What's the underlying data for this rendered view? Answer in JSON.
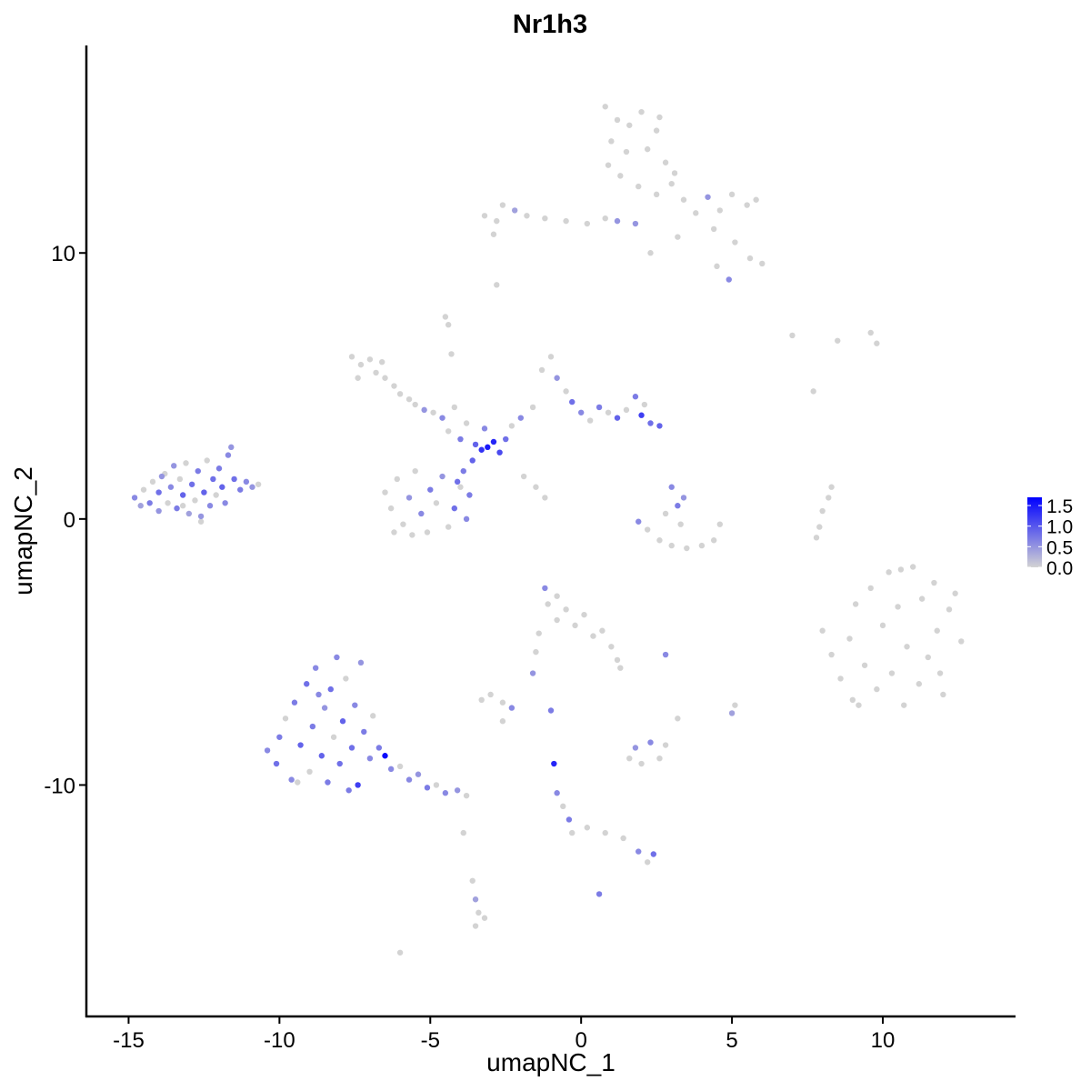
{
  "chart_data": {
    "type": "scatter",
    "title": "Nr1h3",
    "xlabel": "umapNC_1",
    "ylabel": "umapNC_2",
    "xlim": [
      -16.4,
      14.4
    ],
    "ylim": [
      -18.7,
      17.8
    ],
    "x_ticks": [
      -15,
      -10,
      -5,
      0,
      5,
      10
    ],
    "x_tick_labels": [
      "-15",
      "-10",
      "-5",
      "0",
      "5",
      "10"
    ],
    "y_ticks": [
      -10,
      0,
      10
    ],
    "y_tick_labels": [
      "-10",
      "0",
      "10"
    ],
    "grid": false,
    "legend": {
      "position": "right",
      "range": [
        0,
        1.7
      ],
      "ticks": [
        0,
        0.5,
        1.0,
        1.5
      ],
      "tick_labels": [
        "0.0",
        "0.5",
        "1.0",
        "1.5"
      ],
      "color_low": "#d3d3d3",
      "color_high": "#0000ff"
    },
    "points": [
      [
        -14.8,
        0.8,
        0.6
      ],
      [
        -14.6,
        0.5,
        0.4
      ],
      [
        -14.5,
        1.1,
        0
      ],
      [
        -14.3,
        0.6,
        0.7
      ],
      [
        -14.2,
        1.4,
        0
      ],
      [
        -14.0,
        0.3,
        0.5
      ],
      [
        -14.0,
        1.0,
        0.8
      ],
      [
        -13.8,
        1.7,
        0
      ],
      [
        -13.7,
        0.6,
        0
      ],
      [
        -13.6,
        1.2,
        0.6
      ],
      [
        -13.5,
        2.0,
        0.5
      ],
      [
        -13.4,
        0.4,
        0.7
      ],
      [
        -13.3,
        1.5,
        0
      ],
      [
        -13.2,
        0.9,
        0.9
      ],
      [
        -13.1,
        2.1,
        0
      ],
      [
        -13.0,
        0.2,
        0.4
      ],
      [
        -12.9,
        1.3,
        0.8
      ],
      [
        -12.8,
        0.7,
        0
      ],
      [
        -12.7,
        1.8,
        0.7
      ],
      [
        -12.6,
        0.1,
        0.5
      ],
      [
        -12.5,
        1.0,
        0.9
      ],
      [
        -12.4,
        2.2,
        0
      ],
      [
        -12.3,
        0.5,
        0.6
      ],
      [
        -12.2,
        1.5,
        0.8
      ],
      [
        -12.1,
        0.9,
        0
      ],
      [
        -12.0,
        1.9,
        0.7
      ],
      [
        -11.9,
        1.2,
        0.9
      ],
      [
        -11.8,
        0.6,
        0.6
      ],
      [
        -11.7,
        2.4,
        0.6
      ],
      [
        -11.6,
        2.7,
        0.5
      ],
      [
        -11.5,
        1.5,
        0.8
      ],
      [
        -11.3,
        1.1,
        0.7
      ],
      [
        -11.1,
        1.4,
        0.6
      ],
      [
        -10.9,
        1.2,
        0.5
      ],
      [
        -10.7,
        1.3,
        0
      ],
      [
        -12.6,
        -0.1,
        0
      ],
      [
        -13.9,
        1.6,
        0.5
      ],
      [
        -13.2,
        0.5,
        0
      ],
      [
        -7.6,
        6.1,
        0
      ],
      [
        -7.3,
        5.8,
        0
      ],
      [
        -7.0,
        6.0,
        0
      ],
      [
        -6.8,
        5.5,
        0
      ],
      [
        -6.5,
        5.3,
        0
      ],
      [
        -6.2,
        5.0,
        0
      ],
      [
        -6.0,
        4.7,
        0
      ],
      [
        -5.7,
        4.5,
        0
      ],
      [
        -7.4,
        5.3,
        0
      ],
      [
        -6.6,
        5.9,
        0
      ],
      [
        -5.5,
        4.3,
        0
      ],
      [
        -5.2,
        4.1,
        0.5
      ],
      [
        -4.9,
        4.0,
        0
      ],
      [
        -4.6,
        3.8,
        0.6
      ],
      [
        -4.4,
        3.3,
        0
      ],
      [
        -4.2,
        4.2,
        0
      ],
      [
        -4.0,
        3.0,
        0.7
      ],
      [
        -3.8,
        3.6,
        0
      ],
      [
        -3.5,
        2.8,
        0.9
      ],
      [
        -3.3,
        2.6,
        1.3
      ],
      [
        -3.1,
        2.7,
        1.5
      ],
      [
        -2.9,
        2.9,
        1.4
      ],
      [
        -2.7,
        2.5,
        1.1
      ],
      [
        -2.5,
        3.0,
        0.8
      ],
      [
        -3.6,
        2.2,
        0.9
      ],
      [
        -3.9,
        1.8,
        0.7
      ],
      [
        -4.1,
        1.4,
        0.8
      ],
      [
        -3.2,
        3.4,
        0.6
      ],
      [
        -2.3,
        3.5,
        0
      ],
      [
        -2.0,
        3.8,
        0.6
      ],
      [
        -1.6,
        4.2,
        0
      ],
      [
        -1.3,
        5.6,
        0
      ],
      [
        -1.0,
        6.1,
        0
      ],
      [
        -0.8,
        5.3,
        0.5
      ],
      [
        -0.5,
        4.8,
        0
      ],
      [
        -0.3,
        4.4,
        0.8
      ],
      [
        0.0,
        4.0,
        0.6
      ],
      [
        0.3,
        3.7,
        0
      ],
      [
        0.6,
        4.2,
        0.7
      ],
      [
        0.9,
        4.0,
        0
      ],
      [
        1.2,
        3.8,
        0.9
      ],
      [
        1.5,
        4.1,
        0
      ],
      [
        1.8,
        4.6,
        0.7
      ],
      [
        2.1,
        4.3,
        0
      ],
      [
        2.3,
        3.6,
        0.8
      ],
      [
        2.6,
        3.5,
        0.9
      ],
      [
        2.0,
        3.9,
        1.2
      ],
      [
        -1.9,
        1.6,
        0
      ],
      [
        -1.5,
        1.2,
        0
      ],
      [
        -1.2,
        0.8,
        0
      ],
      [
        -4.5,
        7.6,
        0
      ],
      [
        -4.4,
        7.3,
        0
      ],
      [
        -4.3,
        6.2,
        0
      ],
      [
        -6.5,
        1.0,
        0
      ],
      [
        -6.3,
        0.4,
        0
      ],
      [
        -6.1,
        1.5,
        0
      ],
      [
        -5.9,
        -0.2,
        0
      ],
      [
        -5.7,
        0.8,
        0.5
      ],
      [
        -5.5,
        1.8,
        0
      ],
      [
        -5.3,
        0.2,
        0.6
      ],
      [
        -5.1,
        -0.5,
        0
      ],
      [
        -5.0,
        1.1,
        0.7
      ],
      [
        -4.8,
        0.6,
        0
      ],
      [
        -4.6,
        1.6,
        0.5
      ],
      [
        -4.4,
        -0.3,
        0
      ],
      [
        -4.2,
        0.4,
        0.8
      ],
      [
        -4.0,
        1.2,
        0
      ],
      [
        -3.8,
        0.0,
        0.6
      ],
      [
        -3.7,
        0.9,
        0.7
      ],
      [
        -6.2,
        -0.5,
        0
      ],
      [
        -5.6,
        -0.6,
        0
      ],
      [
        -2.6,
        11.8,
        0
      ],
      [
        -2.8,
        11.2,
        0
      ],
      [
        -3.2,
        11.4,
        0
      ],
      [
        -2.2,
        11.6,
        0.4
      ],
      [
        -1.8,
        11.4,
        0
      ],
      [
        -1.2,
        11.3,
        0
      ],
      [
        -0.5,
        11.2,
        0
      ],
      [
        0.2,
        11.1,
        0
      ],
      [
        0.8,
        11.3,
        0
      ],
      [
        1.2,
        11.2,
        0.5
      ],
      [
        1.8,
        11.1,
        0.5
      ],
      [
        -2.9,
        10.7,
        0
      ],
      [
        -2.8,
        8.8,
        0
      ],
      [
        0.8,
        15.5,
        0
      ],
      [
        1.2,
        15.0,
        0
      ],
      [
        1.6,
        14.8,
        0
      ],
      [
        2.0,
        15.3,
        0
      ],
      [
        2.5,
        14.6,
        0
      ],
      [
        1.0,
        14.2,
        0
      ],
      [
        1.5,
        13.8,
        0
      ],
      [
        2.2,
        13.9,
        0
      ],
      [
        2.8,
        13.4,
        0
      ],
      [
        1.3,
        12.9,
        0
      ],
      [
        1.9,
        12.5,
        0
      ],
      [
        2.5,
        12.2,
        0
      ],
      [
        3.0,
        12.6,
        0
      ],
      [
        3.4,
        12.0,
        0
      ],
      [
        3.8,
        11.5,
        0
      ],
      [
        4.2,
        12.1,
        0.5
      ],
      [
        4.6,
        11.6,
        0
      ],
      [
        5.0,
        12.2,
        0
      ],
      [
        5.5,
        11.8,
        0
      ],
      [
        5.8,
        12.0,
        0
      ],
      [
        4.4,
        10.9,
        0
      ],
      [
        5.1,
        10.4,
        0
      ],
      [
        5.6,
        9.8,
        0
      ],
      [
        6.0,
        9.6,
        0
      ],
      [
        4.5,
        9.5,
        0
      ],
      [
        4.9,
        9.0,
        0.6
      ],
      [
        3.2,
        10.6,
        0
      ],
      [
        2.3,
        10.0,
        0
      ],
      [
        2.6,
        15.1,
        0
      ],
      [
        0.9,
        13.3,
        0
      ],
      [
        3.1,
        13.0,
        0
      ],
      [
        -10.4,
        -8.7,
        0.6
      ],
      [
        -10.1,
        -9.2,
        0.8
      ],
      [
        -10.0,
        -8.2,
        0.7
      ],
      [
        -9.8,
        -7.5,
        0
      ],
      [
        -9.6,
        -9.8,
        0.6
      ],
      [
        -9.5,
        -6.9,
        0.7
      ],
      [
        -9.3,
        -8.5,
        0.9
      ],
      [
        -9.1,
        -6.2,
        0.8
      ],
      [
        -9.0,
        -9.5,
        0
      ],
      [
        -8.9,
        -7.8,
        0.7
      ],
      [
        -8.8,
        -5.6,
        0.6
      ],
      [
        -8.6,
        -8.9,
        0.9
      ],
      [
        -8.5,
        -7.1,
        0.5
      ],
      [
        -8.4,
        -9.9,
        0.7
      ],
      [
        -8.3,
        -6.4,
        0.8
      ],
      [
        -8.2,
        -8.2,
        0
      ],
      [
        -8.1,
        -5.2,
        0.6
      ],
      [
        -8.0,
        -9.2,
        0.8
      ],
      [
        -7.9,
        -7.6,
        0.9
      ],
      [
        -7.8,
        -6.0,
        0
      ],
      [
        -7.7,
        -10.2,
        0.7
      ],
      [
        -7.6,
        -8.6,
        0.8
      ],
      [
        -7.5,
        -7.0,
        0.6
      ],
      [
        -7.4,
        -10.0,
        1.2
      ],
      [
        -7.3,
        -5.4,
        0.5
      ],
      [
        -7.2,
        -8.0,
        0.7
      ],
      [
        -7.0,
        -9.0,
        0.6
      ],
      [
        -6.9,
        -7.4,
        0
      ],
      [
        -6.7,
        -8.6,
        0.7
      ],
      [
        -6.5,
        -8.9,
        1.6
      ],
      [
        -6.3,
        -9.4,
        0.6
      ],
      [
        -6.0,
        -9.3,
        0
      ],
      [
        -5.7,
        -9.8,
        0.6
      ],
      [
        -5.4,
        -9.6,
        0.5
      ],
      [
        -5.1,
        -10.1,
        0.7
      ],
      [
        -4.8,
        -10.0,
        0
      ],
      [
        -4.5,
        -10.3,
        0.6
      ],
      [
        -4.1,
        -10.2,
        0.5
      ],
      [
        -3.8,
        -10.4,
        0
      ],
      [
        -9.4,
        -9.9,
        0
      ],
      [
        -8.7,
        -6.6,
        0.6
      ],
      [
        8.0,
        -4.2,
        0
      ],
      [
        8.3,
        -5.1,
        0
      ],
      [
        8.6,
        -6.0,
        0
      ],
      [
        8.9,
        -4.5,
        0
      ],
      [
        9.1,
        -3.2,
        0
      ],
      [
        9.2,
        -7.0,
        0
      ],
      [
        9.4,
        -5.5,
        0
      ],
      [
        9.6,
        -2.6,
        0
      ],
      [
        9.8,
        -6.4,
        0
      ],
      [
        10.0,
        -4.0,
        0
      ],
      [
        10.2,
        -2.0,
        0
      ],
      [
        10.3,
        -5.8,
        0
      ],
      [
        10.5,
        -3.3,
        0
      ],
      [
        10.7,
        -7.0,
        0
      ],
      [
        10.8,
        -4.8,
        0
      ],
      [
        11.0,
        -1.8,
        0
      ],
      [
        11.2,
        -6.2,
        0
      ],
      [
        11.3,
        -3.0,
        0
      ],
      [
        11.5,
        -5.2,
        0
      ],
      [
        11.7,
        -2.4,
        0
      ],
      [
        11.8,
        -4.2,
        0
      ],
      [
        12.0,
        -6.6,
        0
      ],
      [
        12.2,
        -3.4,
        0
      ],
      [
        12.4,
        -2.8,
        0
      ],
      [
        12.6,
        -4.6,
        0
      ],
      [
        9.0,
        -6.8,
        0
      ],
      [
        10.6,
        -1.9,
        0
      ],
      [
        11.9,
        -5.8,
        0
      ],
      [
        1.9,
        -0.1,
        0.6
      ],
      [
        2.2,
        -0.4,
        0
      ],
      [
        2.6,
        -0.8,
        0
      ],
      [
        3.0,
        -1.0,
        0
      ],
      [
        3.5,
        -1.1,
        0
      ],
      [
        4.0,
        -1.0,
        0
      ],
      [
        4.4,
        -0.8,
        0
      ],
      [
        4.6,
        -0.2,
        0
      ],
      [
        3.0,
        1.2,
        0.6
      ],
      [
        3.2,
        0.5,
        0.7
      ],
      [
        3.3,
        -0.2,
        0
      ],
      [
        2.8,
        0.2,
        0
      ],
      [
        3.4,
        0.8,
        0.5
      ],
      [
        -1.2,
        -2.6,
        0.6
      ],
      [
        -1.1,
        -3.2,
        0
      ],
      [
        -0.8,
        -3.8,
        0
      ],
      [
        -0.5,
        -3.4,
        0
      ],
      [
        -0.2,
        -4.0,
        0
      ],
      [
        0.1,
        -3.6,
        0
      ],
      [
        0.4,
        -4.4,
        0
      ],
      [
        0.7,
        -4.2,
        0
      ],
      [
        1.0,
        -4.8,
        0
      ],
      [
        1.2,
        -5.3,
        0
      ],
      [
        1.3,
        -5.6,
        0
      ],
      [
        -1.4,
        -4.3,
        0
      ],
      [
        -0.8,
        -2.9,
        0
      ],
      [
        -1.5,
        -5.0,
        0
      ],
      [
        -1.6,
        -5.8,
        0.5
      ],
      [
        2.8,
        -5.1,
        0.6
      ],
      [
        -3.3,
        -6.8,
        0
      ],
      [
        -3.0,
        -6.6,
        0
      ],
      [
        -2.6,
        -6.9,
        0
      ],
      [
        -2.3,
        -7.1,
        0.6
      ],
      [
        -2.6,
        -7.6,
        0
      ],
      [
        -1.0,
        -7.2,
        0.7
      ],
      [
        1.6,
        -9.0,
        0
      ],
      [
        1.8,
        -8.6,
        0.5
      ],
      [
        2.0,
        -9.2,
        0
      ],
      [
        2.3,
        -8.4,
        0.6
      ],
      [
        2.6,
        -9.0,
        0
      ],
      [
        2.8,
        -8.5,
        0
      ],
      [
        3.2,
        -7.5,
        0
      ],
      [
        5.0,
        -7.3,
        0.4
      ],
      [
        5.1,
        -7.0,
        0
      ],
      [
        -0.9,
        -9.2,
        1.4
      ],
      [
        -0.8,
        -10.3,
        0.6
      ],
      [
        -0.6,
        -10.8,
        0
      ],
      [
        -0.4,
        -11.3,
        0.7
      ],
      [
        -0.3,
        -11.8,
        0
      ],
      [
        0.2,
        -11.6,
        0
      ],
      [
        0.8,
        -11.8,
        0
      ],
      [
        1.4,
        -12.0,
        0
      ],
      [
        1.9,
        -12.5,
        0.6
      ],
      [
        2.4,
        -12.6,
        0.8
      ],
      [
        2.2,
        -12.9,
        0
      ],
      [
        0.6,
        -14.1,
        0.7
      ],
      [
        -3.6,
        -13.6,
        0
      ],
      [
        -3.5,
        -14.3,
        0.4
      ],
      [
        -3.4,
        -14.8,
        0
      ],
      [
        -3.2,
        -15.0,
        0
      ],
      [
        -3.5,
        -15.3,
        0
      ],
      [
        -3.9,
        -11.8,
        0
      ],
      [
        -6.0,
        -16.3,
        0
      ],
      [
        7.0,
        6.9,
        0
      ],
      [
        8.5,
        6.7,
        0
      ],
      [
        9.6,
        7.0,
        0
      ],
      [
        9.8,
        6.6,
        0
      ],
      [
        7.7,
        4.8,
        0
      ],
      [
        8.0,
        0.3,
        0
      ],
      [
        8.2,
        0.8,
        0
      ],
      [
        8.3,
        1.2,
        0
      ],
      [
        7.9,
        -0.3,
        0
      ],
      [
        7.8,
        -0.7,
        0
      ]
    ]
  }
}
